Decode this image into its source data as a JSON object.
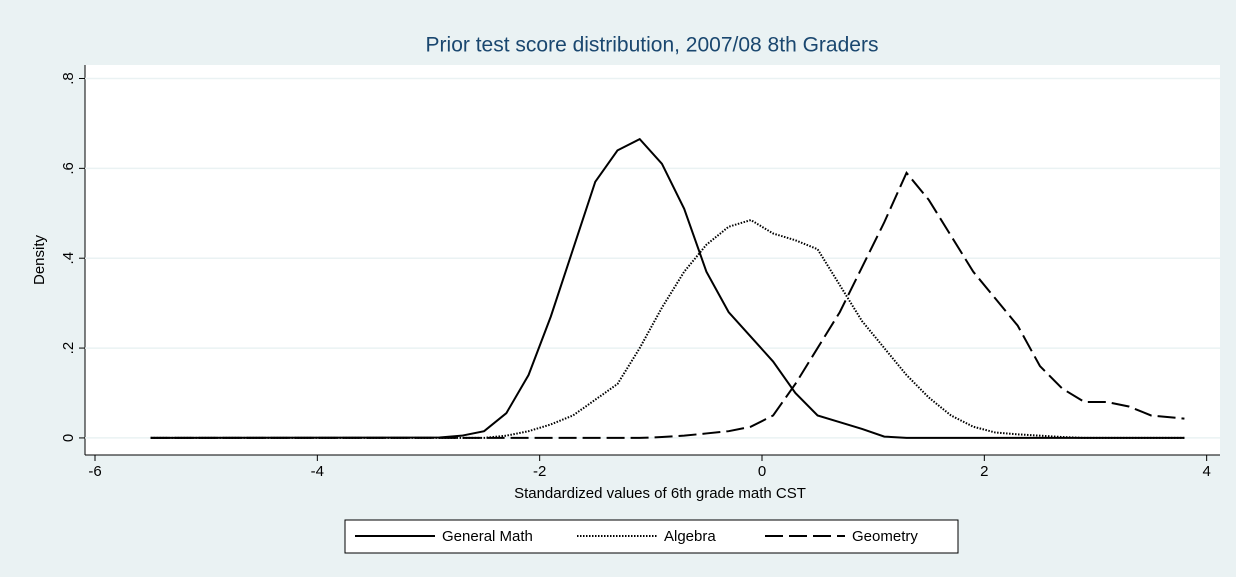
{
  "chart_data": {
    "type": "line",
    "title": "Prior test score distribution, 2007/08 8th Graders",
    "x_label": "Standardized values of 6th grade math CST",
    "y_label": "Density",
    "x": [
      -5.5,
      -2.9,
      -2.7,
      -2.5,
      -2.3,
      -2.1,
      -1.9,
      -1.7,
      -1.5,
      -1.3,
      -1.1,
      -0.9,
      -0.7,
      -0.5,
      -0.3,
      -0.1,
      0.1,
      0.3,
      0.5,
      0.7,
      0.9,
      1.1,
      1.3,
      1.5,
      1.7,
      1.9,
      2.1,
      2.3,
      2.5,
      2.7,
      2.9,
      3.1,
      3.3,
      3.5,
      3.8
    ],
    "series": [
      {
        "name": "General Math",
        "color": "#000000",
        "line_style": "solid",
        "values": [
          0,
          0.001,
          0.005,
          0.015,
          0.055,
          0.14,
          0.27,
          0.42,
          0.57,
          0.64,
          0.665,
          0.61,
          0.51,
          0.37,
          0.28,
          0.225,
          0.17,
          0.1,
          0.05,
          0.035,
          0.02,
          0.003,
          0,
          0,
          0,
          0,
          0,
          0,
          0,
          0,
          0,
          0,
          0,
          0,
          0
        ]
      },
      {
        "name": "Algebra",
        "color": "#000000",
        "line_style": "dotted",
        "values": [
          0,
          0,
          0,
          0,
          0.005,
          0.015,
          0.03,
          0.05,
          0.085,
          0.12,
          0.2,
          0.29,
          0.37,
          0.43,
          0.47,
          0.485,
          0.455,
          0.44,
          0.42,
          0.34,
          0.26,
          0.2,
          0.14,
          0.09,
          0.05,
          0.025,
          0.012,
          0.008,
          0.005,
          0.002,
          0,
          0,
          0,
          0,
          0
        ]
      },
      {
        "name": "Geometry",
        "color": "#000000",
        "line_style": "dashed",
        "values": [
          0,
          0,
          0,
          0,
          0,
          0,
          0,
          0,
          0,
          0,
          0,
          0.002,
          0.005,
          0.01,
          0.015,
          0.025,
          0.05,
          0.12,
          0.2,
          0.28,
          0.38,
          0.48,
          0.59,
          0.53,
          0.45,
          0.37,
          0.31,
          0.25,
          0.16,
          0.11,
          0.08,
          0.08,
          0.07,
          0.05,
          0.043
        ]
      }
    ],
    "xlim": [
      -6.09,
      4.12
    ],
    "xticks": [
      -6,
      -4,
      -2,
      0,
      2,
      4
    ],
    "ylim": [
      -0.038,
      0.83
    ],
    "yticks": [
      0,
      {
        "value": 0.2,
        "label": ".2"
      },
      {
        "value": 0.4,
        "label": ".4"
      },
      {
        "value": 0.6,
        "label": ".6"
      },
      {
        "value": 0.8,
        "label": ".8"
      }
    ],
    "grid": true,
    "legend_position": "bottom"
  }
}
